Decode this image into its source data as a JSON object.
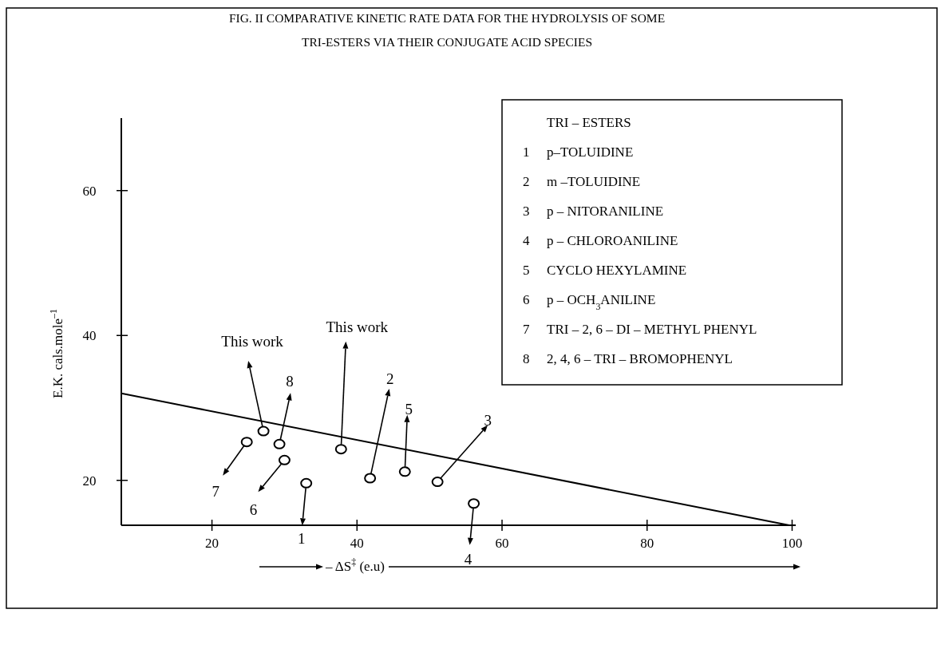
{
  "chart_data": {
    "type": "scatter",
    "title": "FIG. II  COMPARATIVE KINETIC RATE DATA FOR THE HYDROLYSIS OF SOME",
    "subtitle": "TRI-ESTERS VIA THEIR CONJUGATE ACID SPECIES",
    "xlabel": "– ΔS$^{‡}$ (e.u)",
    "ylabel": "E.K. cals.mole$^{–1}$",
    "xlim": [
      7.5,
      100.5
    ],
    "ylim": [
      13.8,
      70
    ],
    "xticks": [
      20,
      40,
      60,
      80,
      100
    ],
    "yticks": [
      20,
      40,
      60
    ],
    "grid": false,
    "marker": "circle",
    "series": [
      {
        "color": "#000000",
        "x": [
          24.8,
          27.1,
          29.3,
          30.0,
          33.0,
          37.8,
          41.8,
          46.6,
          51.1,
          56.1
        ],
        "values": [
          25.3,
          26.8,
          25.0,
          22.8,
          19.6,
          24.3,
          20.3,
          21.2,
          19.8,
          16.8
        ]
      },
      {
        "type": "line",
        "color": "#000000",
        "marker": "none",
        "x": [
          7.5,
          99.6
        ],
        "values": [
          32.0,
          13.8
        ]
      }
    ],
    "annotations": [
      {
        "text": "7",
        "x": 24.8,
        "y": 25.3
      },
      {
        "text": "This work",
        "x": 27.1,
        "y": 26.8
      },
      {
        "text": "8",
        "x": 29.3,
        "y": 25.0
      },
      {
        "text": "6",
        "x": 30.0,
        "y": 22.8
      },
      {
        "text": "1",
        "x": 33.0,
        "y": 19.6
      },
      {
        "text": "This work",
        "x": 37.8,
        "y": 24.3
      },
      {
        "text": "2",
        "x": 41.8,
        "y": 20.3
      },
      {
        "text": "5",
        "x": 46.6,
        "y": 21.2
      },
      {
        "text": "3",
        "x": 51.1,
        "y": 19.8
      },
      {
        "text": "4",
        "x": 56.1,
        "y": 16.8
      },
      "TRI – ESTERS",
      "1 p–TOLUIDINE",
      "2 m –TOLUIDINE",
      "3 p – NITORANILINE",
      "4 p – CHLOROANILINE",
      "5 CYCLO HEXYLAMINE",
      "6 p – OCH$_{3}$ANILINE",
      "7 TRI – 2, 6 – DI – METHYL PHENYL",
      "8 2, 4, 6 – TRI – BROMOPHENYL"
    ]
  }
}
